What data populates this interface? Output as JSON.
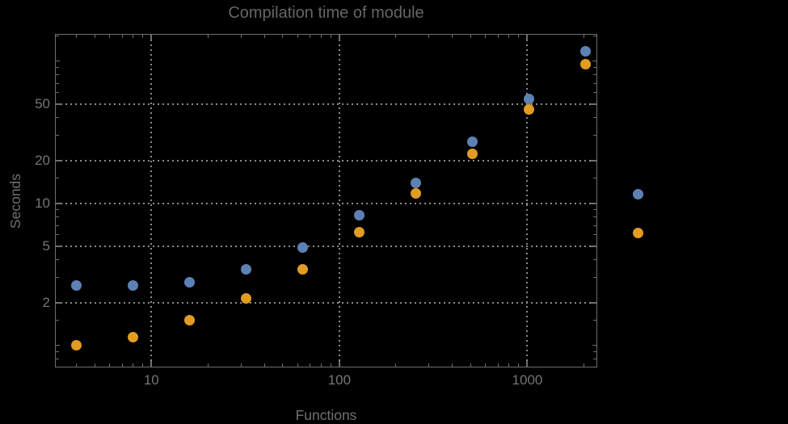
{
  "title": "Compilation time of module",
  "chart_data": {
    "type": "scatter",
    "title": "Compilation time of module",
    "xlabel": "Functions",
    "ylabel": "Seconds",
    "x_scale": "log",
    "y_scale": "log",
    "grid": "dotted",
    "xlim": [
      3.07,
      2355
    ],
    "ylim": [
      0.7,
      155.8
    ],
    "x": [
      4,
      8,
      16,
      32,
      64,
      128,
      256,
      512,
      1024,
      2048
    ],
    "series": [
      {
        "name": "",
        "color": "#5E81B5",
        "values": [
          2.65,
          2.65,
          2.8,
          3.45,
          4.9,
          8.2,
          14,
          27,
          54,
          117
        ]
      },
      {
        "name": "",
        "color": "#E19C24",
        "values": [
          1.0,
          1.15,
          1.5,
          2.15,
          3.45,
          6.3,
          11.7,
          22.3,
          46,
          95
        ]
      }
    ],
    "x_ticks": [
      {
        "value": 10,
        "label": "10"
      },
      {
        "value": 100,
        "label": "100"
      },
      {
        "value": 1000,
        "label": "1000"
      }
    ],
    "y_ticks": [
      {
        "value": 50,
        "label": "50"
      },
      {
        "value": 20,
        "label": "20"
      },
      {
        "value": 10,
        "label": "10"
      },
      {
        "value": 5,
        "label": "5"
      },
      {
        "value": 2,
        "label": "2"
      }
    ],
    "legend": {
      "position": "outside-right",
      "entries": [
        {
          "label": "",
          "color": "#5E81B5"
        },
        {
          "label": "",
          "color": "#E19C24"
        }
      ]
    },
    "colors": {
      "background": "#000000",
      "frame": "#6e6e6e",
      "grid": "#8a8a8a",
      "tick_text": "#757575",
      "title_text": "#656565",
      "series_1": "#5E81B5",
      "series_2": "#E19C24"
    }
  }
}
